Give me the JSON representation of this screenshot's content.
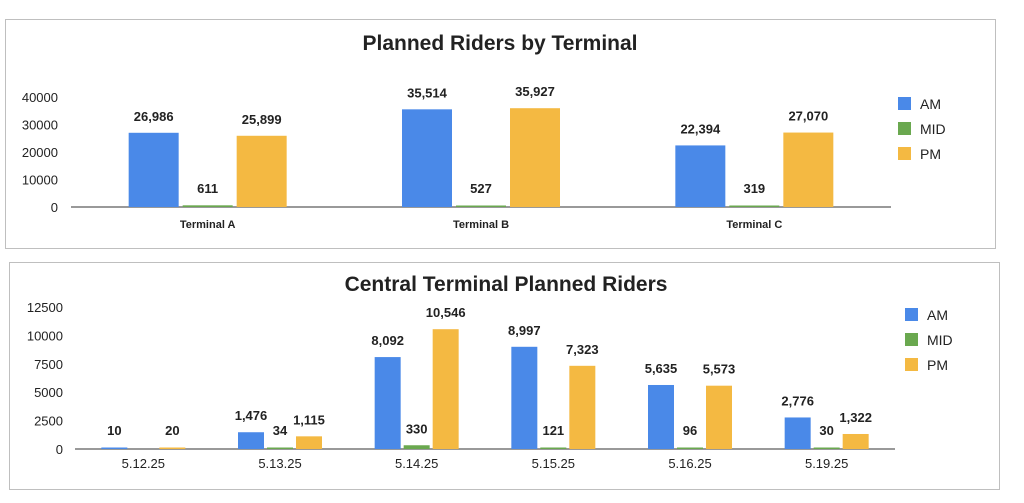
{
  "chart_data": [
    {
      "type": "bar",
      "title": "Planned Riders by Terminal",
      "categories": [
        "Terminal A",
        "Terminal B",
        "Terminal C"
      ],
      "series": [
        {
          "name": "AM",
          "values": [
            26986,
            35514,
            22394
          ],
          "labels": [
            "26,986",
            "35,514",
            "22,394"
          ],
          "color": "#4a89e8"
        },
        {
          "name": "MID",
          "values": [
            611,
            527,
            319
          ],
          "labels": [
            "611",
            "527",
            "319"
          ],
          "color": "#6aa84f"
        },
        {
          "name": "PM",
          "values": [
            25899,
            35927,
            27070
          ],
          "labels": [
            "25,899",
            "35,927",
            "27,070"
          ],
          "color": "#f4b942"
        }
      ],
      "yticks": [
        0,
        10000,
        20000,
        30000,
        40000
      ],
      "ylim": [
        0,
        40000
      ],
      "legend": "right"
    },
    {
      "type": "bar",
      "title": "Central Terminal Planned Riders",
      "categories": [
        "5.12.25",
        "5.13.25",
        "5.14.25",
        "5.15.25",
        "5.16.25",
        "5.19.25"
      ],
      "series": [
        {
          "name": "AM",
          "values": [
            10,
            1476,
            8092,
            8997,
            5635,
            2776
          ],
          "labels": [
            "10",
            "1,476",
            "8,092",
            "8,997",
            "5,635",
            "2,776"
          ],
          "color": "#4a89e8"
        },
        {
          "name": "MID",
          "values": [
            0,
            34,
            330,
            121,
            96,
            30
          ],
          "labels": [
            "",
            "34",
            "330",
            "121",
            "96",
            "30"
          ],
          "color": "#6aa84f"
        },
        {
          "name": "PM",
          "values": [
            20,
            1115,
            10546,
            7323,
            5573,
            1322
          ],
          "labels": [
            "20",
            "1,115",
            "10,546",
            "7,323",
            "5,573",
            "1,322"
          ],
          "color": "#f4b942"
        }
      ],
      "yticks": [
        0,
        2500,
        5000,
        7500,
        10000,
        12500
      ],
      "ylim": [
        0,
        12500
      ],
      "legend": "right"
    }
  ]
}
